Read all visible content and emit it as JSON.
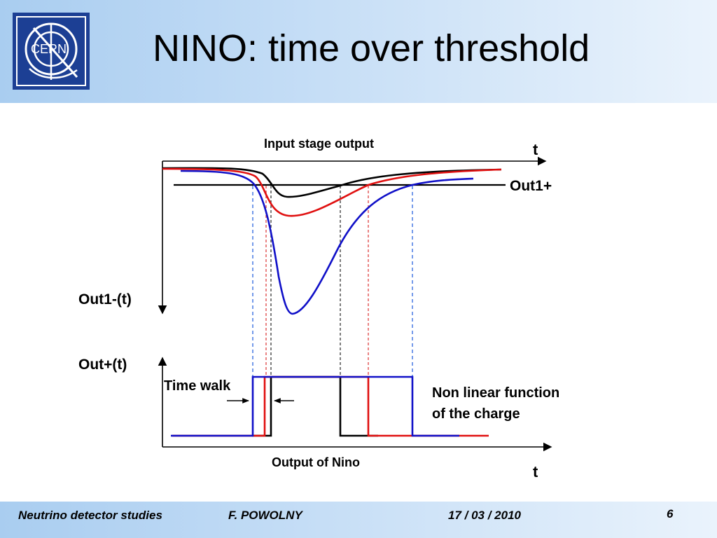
{
  "slide": {
    "title": "NINO: time over threshold",
    "logo_text": "CERN"
  },
  "diagram": {
    "input_stage_label": "Input stage output",
    "t_top": "t",
    "out1_plus": "Out1+",
    "out1_minus": "Out1-(t)",
    "out_plus": "Out+(t)",
    "time_walk": "Time walk",
    "nonlinear_line1": "Non linear function",
    "nonlinear_line2": "of the charge",
    "output_label": "Output of Nino",
    "t_bottom": "t"
  },
  "colors": {
    "black_signal": "#000000",
    "red_signal": "#e01010",
    "blue_signal": "#1010c8",
    "header_bg": "#b9d6f3",
    "logo_bg": "#1c3f94"
  },
  "footer": {
    "left": "Neutrino detector studies",
    "author": "F. POWOLNY",
    "date": "17 / 03 / 2010",
    "page": "6"
  }
}
